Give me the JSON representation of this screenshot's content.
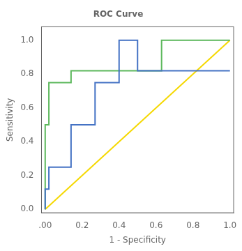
{
  "chart_data": {
    "type": "line",
    "title": "ROC Curve",
    "xlabel": "1 - Specificity",
    "ylabel": "Sensitivity",
    "xlim": [
      -0.02,
      1.02
    ],
    "ylim": [
      -0.02,
      1.08
    ],
    "xticks": [
      {
        "value": 0.0,
        "label": ".00"
      },
      0.2,
      0.4,
      0.6,
      0.8,
      {
        "value": 1.0,
        "label": "1.0"
      }
    ],
    "yticks": [
      {
        "value": 0.0,
        "label": "0.0"
      },
      0.2,
      0.4,
      0.6,
      0.8,
      {
        "value": 1.0,
        "label": "1.0"
      }
    ],
    "grid": false,
    "series": [
      {
        "x": [
          0,
          1
        ],
        "values": [
          0,
          1
        ],
        "color": "#F5D800"
      },
      {
        "x": [
          0.0,
          0.0,
          0.02,
          0.02,
          0.14,
          0.14,
          0.63,
          0.63,
          1.0
        ],
        "values": [
          0.0,
          0.5,
          0.5,
          0.75,
          0.75,
          0.82,
          0.82,
          1.0,
          1.0
        ],
        "color": "#5CB85C"
      },
      {
        "x": [
          0.0,
          0.0,
          0.02,
          0.02,
          0.14,
          0.14,
          0.27,
          0.27,
          0.4,
          0.4,
          0.5,
          0.5,
          1.0
        ],
        "values": [
          0.0,
          0.12,
          0.12,
          0.25,
          0.25,
          0.5,
          0.5,
          0.75,
          0.75,
          1.0,
          1.0,
          0.82,
          0.82
        ],
        "color": "#4472C4"
      }
    ]
  }
}
